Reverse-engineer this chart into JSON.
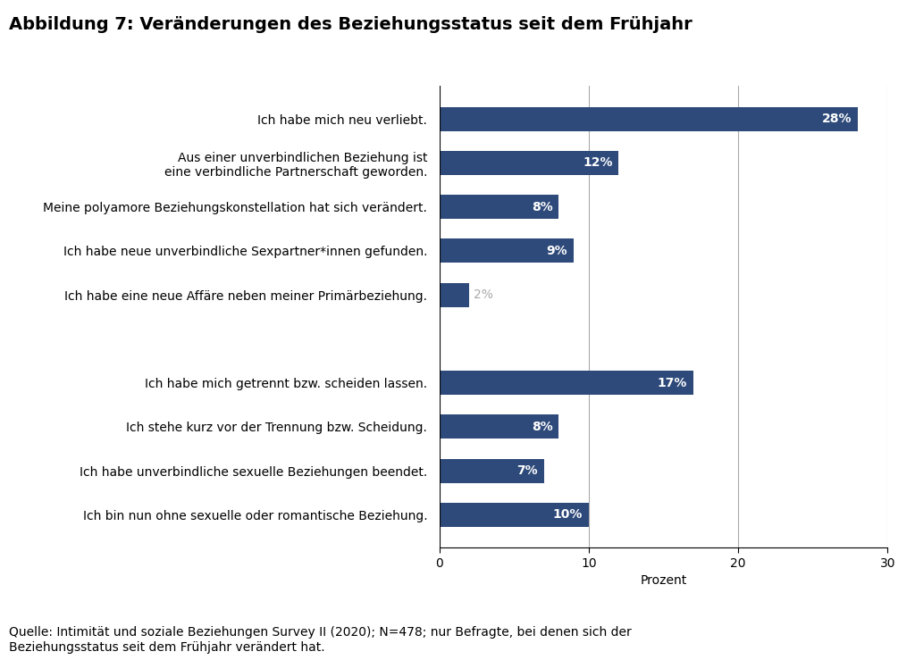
{
  "title": "Abbildung 7: Veränderungen des Beziehungsstatus seit dem Frühjahr",
  "categories": [
    "Ich bin nun ohne sexuelle oder romantische Beziehung.",
    "Ich habe unverbindliche sexuelle Beziehungen beendet.",
    "Ich stehe kurz vor der Trennung bzw. Scheidung.",
    "Ich habe mich getrennt bzw. scheiden lassen.",
    "",
    "Ich habe eine neue Affäre neben meiner Primärbeziehung.",
    "Ich habe neue unverbindliche Sexpartner*innen gefunden.",
    "Meine polyamore Beziehungskonstellation hat sich verändert.",
    "Aus einer unverbindlichen Beziehung ist\neine verbindliche Partnerschaft geworden.",
    "Ich habe mich neu verliebt."
  ],
  "values": [
    10,
    7,
    8,
    17,
    0,
    2,
    9,
    8,
    12,
    28
  ],
  "bar_color": "#2e4a7a",
  "xlabel": "Prozent",
  "xlim": [
    0,
    30
  ],
  "xticks": [
    0,
    10,
    20,
    30
  ],
  "vline_positions": [
    10,
    20,
    30
  ],
  "background_color": "#ffffff",
  "footnote": "Quelle: Intimität und soziale Beziehungen Survey II (2020); N=478; nur Befragte, bei denen sich der\nBeziehungsstatus seit dem Frühjahr verändert hat.",
  "title_fontsize": 14,
  "label_fontsize": 10,
  "tick_fontsize": 10,
  "footnote_fontsize": 10,
  "bar_height": 0.55
}
